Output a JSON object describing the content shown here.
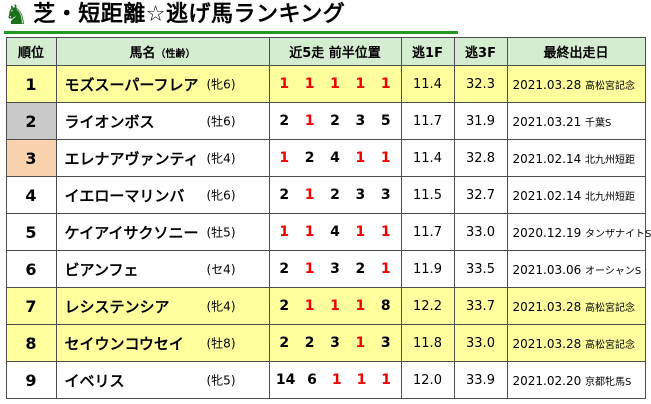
{
  "title": {
    "icon": "chess-knight-icon",
    "text": "芝・短距離☆逃げ馬ランキング"
  },
  "colors": {
    "accent_green": "#229a22",
    "knight_green": "#1b6e1b",
    "header_bg": "#d4edd0",
    "row_highlight": "#ffff9e",
    "rank_gold": "#ffff9e",
    "rank_silver": "#c9c9c9",
    "rank_bronze": "#f9d3ad",
    "red_number": "#ee0000"
  },
  "table": {
    "headers": {
      "rank": "順位",
      "horse": "馬名",
      "horse_sub": "（性齢）",
      "positions": "近5走 前半位置",
      "f1": "逃1F",
      "f3": "逃3F",
      "last_race": "最終出走日"
    },
    "rows": [
      {
        "rank": "1",
        "rank_style": "gold",
        "highlight": true,
        "name": "モズスーパーフレア",
        "sex_age": "(牝6)",
        "positions": [
          "1",
          "1",
          "1",
          "1",
          "1"
        ],
        "f1": "11.4",
        "f3": "32.3",
        "date": "2021.03.28",
        "race": "高松宮記念"
      },
      {
        "rank": "2",
        "rank_style": "silver",
        "highlight": false,
        "name": "ライオンボス",
        "sex_age": "(牡6)",
        "positions": [
          "2",
          "1",
          "2",
          "3",
          "5"
        ],
        "f1": "11.7",
        "f3": "31.9",
        "date": "2021.03.21",
        "race": "千葉S"
      },
      {
        "rank": "3",
        "rank_style": "bronze",
        "highlight": false,
        "name": "エレナアヴァンティ",
        "sex_age": "(牝4)",
        "positions": [
          "1",
          "2",
          "4",
          "1",
          "1"
        ],
        "f1": "11.4",
        "f3": "32.8",
        "date": "2021.02.14",
        "race": "北九州短距"
      },
      {
        "rank": "4",
        "rank_style": "none",
        "highlight": false,
        "name": "イエローマリンバ",
        "sex_age": "(牝6)",
        "positions": [
          "2",
          "1",
          "2",
          "3",
          "3"
        ],
        "f1": "11.5",
        "f3": "32.7",
        "date": "2021.02.14",
        "race": "北九州短距"
      },
      {
        "rank": "5",
        "rank_style": "none",
        "highlight": false,
        "name": "ケイアイサクソニー",
        "sex_age": "(牡5)",
        "positions": [
          "1",
          "1",
          "4",
          "1",
          "1"
        ],
        "f1": "11.7",
        "f3": "33.0",
        "date": "2020.12.19",
        "race": "タンザナイトS"
      },
      {
        "rank": "6",
        "rank_style": "none",
        "highlight": false,
        "name": "ビアンフェ",
        "sex_age": "(セ4)",
        "positions": [
          "2",
          "1",
          "3",
          "2",
          "1"
        ],
        "f1": "11.9",
        "f3": "33.5",
        "date": "2021.03.06",
        "race": "オーシャンS"
      },
      {
        "rank": "7",
        "rank_style": "none",
        "highlight": true,
        "name": "レシステンシア",
        "sex_age": "(牝4)",
        "positions": [
          "2",
          "1",
          "1",
          "1",
          "8"
        ],
        "f1": "12.2",
        "f3": "33.7",
        "date": "2021.03.28",
        "race": "高松宮記念"
      },
      {
        "rank": "8",
        "rank_style": "none",
        "highlight": true,
        "name": "セイウンコウセイ",
        "sex_age": "(牡8)",
        "positions": [
          "2",
          "2",
          "3",
          "1",
          "3"
        ],
        "f1": "11.8",
        "f3": "33.0",
        "date": "2021.03.28",
        "race": "高松宮記念"
      },
      {
        "rank": "9",
        "rank_style": "none",
        "highlight": false,
        "name": "イベリス",
        "sex_age": "(牝5)",
        "positions": [
          "14",
          "6",
          "1",
          "1",
          "1"
        ],
        "f1": "12.0",
        "f3": "33.9",
        "date": "2021.02.20",
        "race": "京都牝馬S"
      }
    ]
  },
  "chart_data": {
    "type": "table",
    "title": "芝・短距離☆逃げ馬ランキング",
    "columns": [
      "順位",
      "馬名（性齢）",
      "近5走 前半位置",
      "逃1F",
      "逃3F",
      "最終出走日"
    ],
    "rows": [
      [
        "1",
        "モズスーパーフレア (牝6)",
        "1 1 1 1 1",
        "11.4",
        "32.3",
        "2021.03.28 高松宮記念"
      ],
      [
        "2",
        "ライオンボス (牡6)",
        "2 1 2 3 5",
        "11.7",
        "31.9",
        "2021.03.21 千葉S"
      ],
      [
        "3",
        "エレナアヴァンティ (牝4)",
        "1 2 4 1 1",
        "11.4",
        "32.8",
        "2021.02.14 北九州短距"
      ],
      [
        "4",
        "イエローマリンバ (牝6)",
        "2 1 2 3 3",
        "11.5",
        "32.7",
        "2021.02.14 北九州短距"
      ],
      [
        "5",
        "ケイアイサクソニー (牡5)",
        "1 1 4 1 1",
        "11.7",
        "33.0",
        "2020.12.19 タンザナイトS"
      ],
      [
        "6",
        "ビアンフェ (セ4)",
        "2 1 3 2 1",
        "11.9",
        "33.5",
        "2021.03.06 オーシャンS"
      ],
      [
        "7",
        "レシステンシア (牝4)",
        "2 1 1 1 8",
        "12.2",
        "33.7",
        "2021.03.28 高松宮記念"
      ],
      [
        "8",
        "セイウンコウセイ (牡8)",
        "2 2 3 1 3",
        "11.8",
        "33.0",
        "2021.03.28 高松宮記念"
      ],
      [
        "9",
        "イベリス (牝5)",
        "14 6 1 1 1",
        "12.0",
        "33.9",
        "2021.02.20 京都牝馬S"
      ]
    ],
    "notes": "position value 1 rendered in red; rows with 高松宮記念 highlighted yellow; rank cells 1/2/3 gold/silver/bronze"
  }
}
